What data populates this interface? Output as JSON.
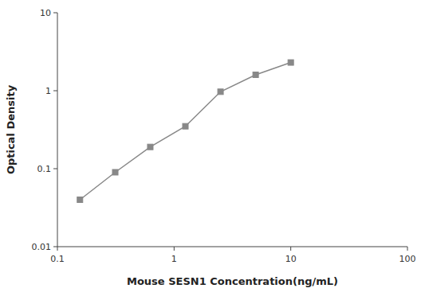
{
  "chart_data": {
    "type": "line",
    "x": [
      0.156,
      0.313,
      0.625,
      1.25,
      2.5,
      5.0,
      10.0
    ],
    "values": [
      0.04,
      0.09,
      0.19,
      0.35,
      0.97,
      1.6,
      2.3
    ],
    "xlabel": "Mouse SESN1 Concentration(ng/mL)",
    "ylabel": "Optical Density",
    "xlim": [
      0.1,
      100
    ],
    "ylim": [
      0.01,
      10
    ],
    "xticks": [
      0.1,
      1,
      10,
      100
    ],
    "yticks": [
      0.01,
      0.1,
      1,
      10
    ],
    "log": true,
    "grid": false,
    "color": "#888888",
    "marker": "square"
  }
}
